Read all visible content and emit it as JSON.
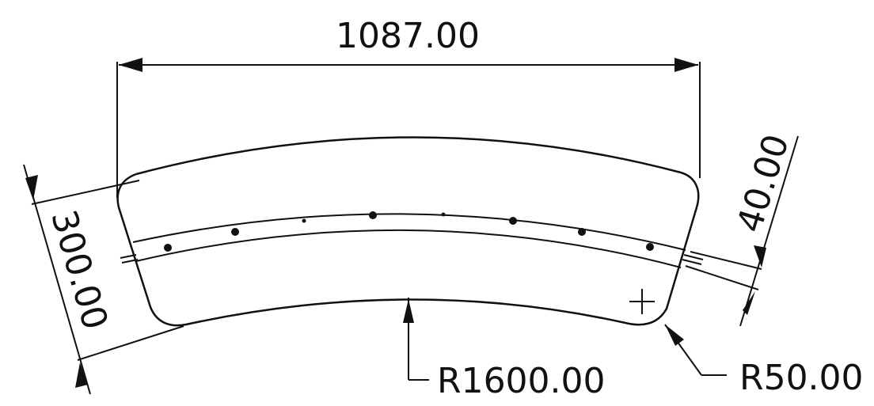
{
  "dimensions": {
    "overall_width": "1087.00",
    "segment_height": "300.00",
    "band_offset": "40.00",
    "inner_radius": "R1600.00",
    "corner_radius": "R50.00"
  },
  "features": {
    "hole_count": 8,
    "center_mark": "+"
  }
}
